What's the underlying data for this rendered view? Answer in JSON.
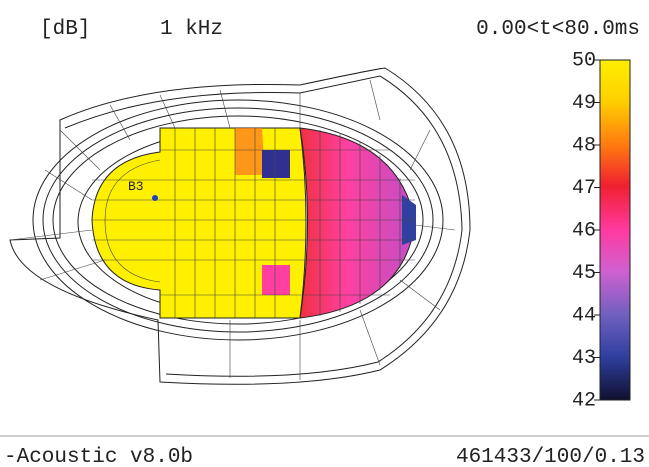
{
  "header": {
    "unit": "[dB]",
    "frequency": "1 kHz",
    "time_window": "0.00<t<80.0ms"
  },
  "model": {
    "source_label": "B3"
  },
  "color_scale": {
    "ticks": [
      50,
      49,
      48,
      47,
      46,
      45,
      44,
      43,
      42
    ]
  },
  "footer": {
    "software": "-Acoustic v8.0b",
    "run_info": "461433/100/0.13"
  }
}
